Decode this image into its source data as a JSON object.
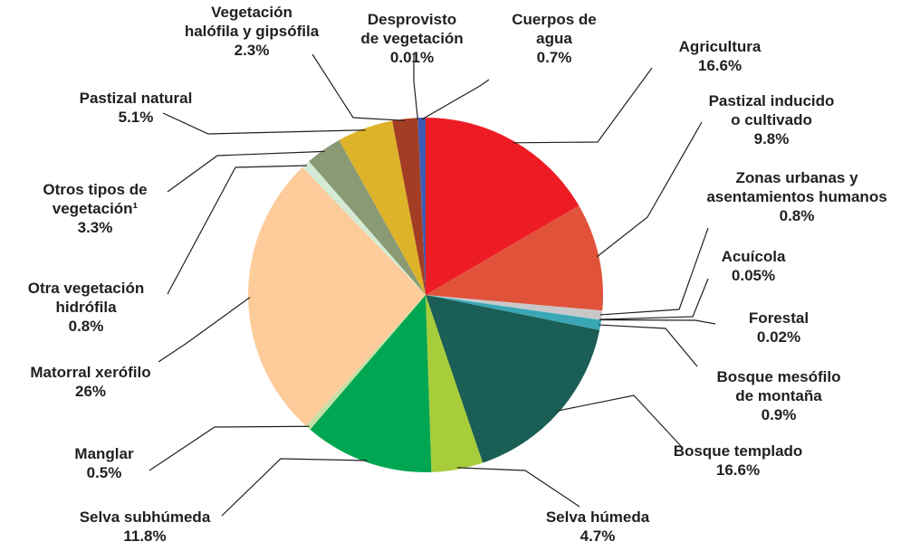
{
  "chart_data": {
    "type": "pie",
    "categories": [
      [
        "Agricultura"
      ],
      [
        "Pastizal inducido",
        "o cultivado"
      ],
      [
        "Zonas urbanas y",
        "asentamientos humanos"
      ],
      [
        "Acuícola"
      ],
      [
        "Forestal"
      ],
      [
        "Bosque mesófilo",
        "de montaña"
      ],
      [
        "Bosque templado"
      ],
      [
        "Selva húmeda"
      ],
      [
        "Selva subhúmeda"
      ],
      [
        "Manglar"
      ],
      [
        "Matorral xerófilo"
      ],
      [
        "Otra vegetación",
        "hidrófila"
      ],
      [
        "Otros tipos de",
        "vegetación¹"
      ],
      [
        "Pastizal natural"
      ],
      [
        "Vegetación",
        "halófila y gipsófila"
      ],
      [
        "Desprovisto",
        "de vegetación"
      ],
      [
        "Cuerpos de",
        "agua"
      ]
    ],
    "values": [
      16.6,
      9.8,
      0.8,
      0.05,
      0.02,
      0.9,
      16.6,
      4.7,
      11.8,
      0.5,
      26,
      0.8,
      3.3,
      5.1,
      2.3,
      0.01,
      0.7
    ],
    "value_labels": [
      "16.6%",
      "9.8%",
      "0.8%",
      "0.05%",
      "0.02%",
      "0.9%",
      "16.6%",
      "4.7%",
      "11.8%",
      "0.5%",
      "26%",
      "0.8%",
      "3.3%",
      "5.1%",
      "2.3%",
      "0.01%",
      "0.7%"
    ],
    "colors": [
      "#ed1c24",
      "#e0533a",
      "#c8c8c8",
      "#7ab6c2",
      "#c3d6e0",
      "#3aa7b5",
      "#1a5e55",
      "#a8cd3a",
      "#00a651",
      "#c5e0a5",
      "#fdcc9a",
      "#d3ebd4",
      "#8a9a75",
      "#ddb32a",
      "#a33d23",
      "#6f6f6f",
      "#3e5bb5"
    ]
  }
}
